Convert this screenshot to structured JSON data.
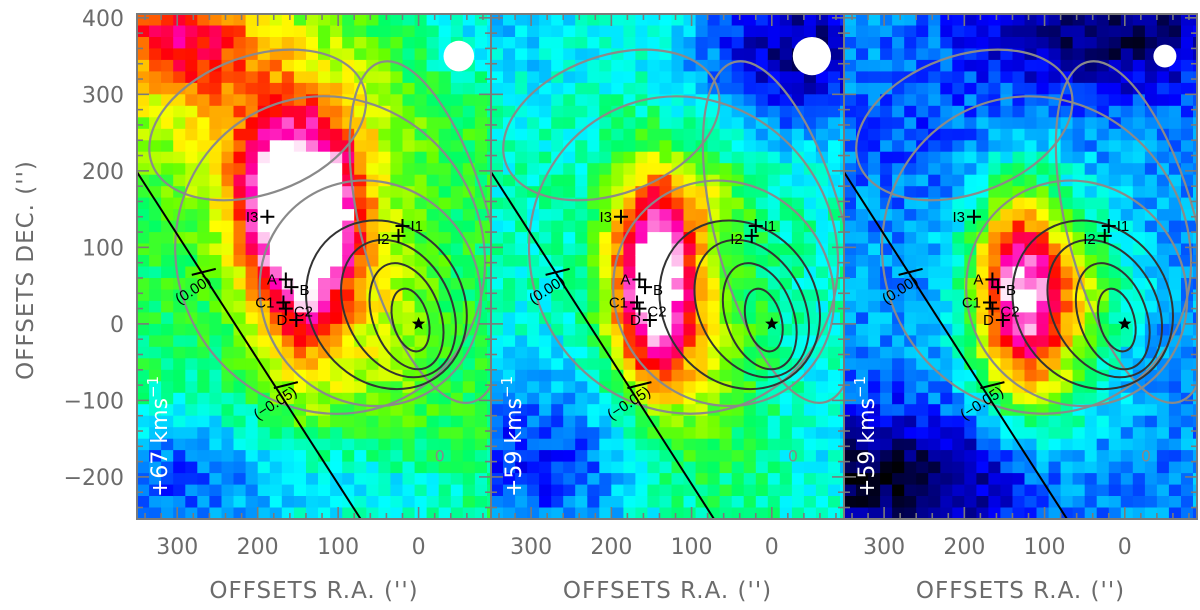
{
  "chart_data": {
    "type": "heatmap",
    "title": "",
    "xlabel": "OFFSETS R.A. ('')",
    "ylabel": "OFFSETS DEC. ('')",
    "xlim": [
      350,
      -90
    ],
    "ylim": [
      -255,
      405
    ],
    "x_ticks": [
      300,
      200,
      100,
      0
    ],
    "y_ticks": [
      400,
      300,
      200,
      100,
      0,
      -100,
      -200
    ],
    "colormap": [
      "#000000",
      "#00007a",
      "#0000ff",
      "#0096ff",
      "#00ffff",
      "#00ff66",
      "#66ff00",
      "#ffff00",
      "#ff9900",
      "#ff0000",
      "#ff00b4",
      "#ffffff"
    ],
    "contour_colors": {
      "outer": "#8a8a8a",
      "inner": "#333333"
    },
    "sources": [
      {
        "name": "A",
        "x": 165,
        "y": 58
      },
      {
        "name": "B",
        "x": 158,
        "y": 48
      },
      {
        "name": "C1",
        "x": 168,
        "y": 28
      },
      {
        "name": "C2",
        "x": 165,
        "y": 20
      },
      {
        "name": "D",
        "x": 152,
        "y": 5
      },
      {
        "name": "I1",
        "x": 20,
        "y": 128
      },
      {
        "name": "I2",
        "x": 25,
        "y": 115
      },
      {
        "name": "I3",
        "x": 188,
        "y": 140
      }
    ],
    "star": {
      "x": 0,
      "y": 0
    },
    "line": {
      "x1": 362,
      "y1": 218,
      "x2": 72,
      "y2": -255
    },
    "line_ticks": [
      {
        "label": "(0.00)",
        "x": 267,
        "y": 68
      },
      {
        "label": "(−0.05)",
        "x": 165,
        "y": -80
      }
    ],
    "zero_contour_label": "0",
    "panels": [
      {
        "velocity_label": "+67  kms",
        "velocity_sup": "−1",
        "beam_diameter": 40,
        "beam": {
          "x": -50,
          "y": 350
        }
      },
      {
        "velocity_label": "+59  kms",
        "velocity_sup": "−1",
        "beam_diameter": 50,
        "beam": {
          "x": -50,
          "y": 350
        }
      },
      {
        "velocity_label": "+59  kms",
        "velocity_sup": "−1",
        "beam_diameter": 30,
        "beam": {
          "x": -50,
          "y": 350
        }
      }
    ]
  }
}
